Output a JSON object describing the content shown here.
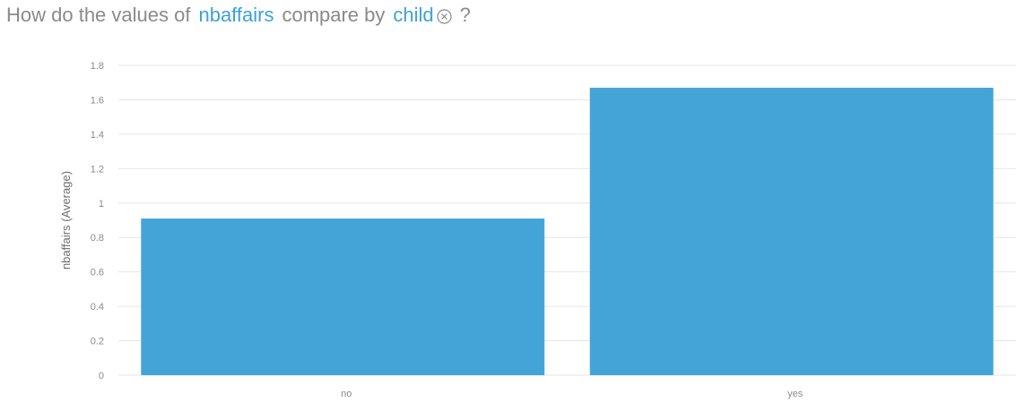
{
  "question": {
    "prefix": "How do the values of",
    "measure": "nbaffairs",
    "middle": "compare by",
    "dimension": "child",
    "remove_icon": "close-circle-icon",
    "suffix": "?"
  },
  "colors": {
    "bar": "#44a4d8",
    "field": "#3ea1d6",
    "grid": "#e6e6e6"
  },
  "chart_data": {
    "type": "bar",
    "categories": [
      "no",
      "yes"
    ],
    "values": [
      0.91,
      1.67
    ],
    "title": "",
    "xlabel": "",
    "ylabel": "nbaffairs (Average)",
    "ylim": [
      0,
      1.8
    ],
    "yticks": [
      0,
      0.2,
      0.4,
      0.6,
      0.8,
      1,
      1.2,
      1.4,
      1.6,
      1.8
    ],
    "grid": true,
    "legend": "none"
  }
}
